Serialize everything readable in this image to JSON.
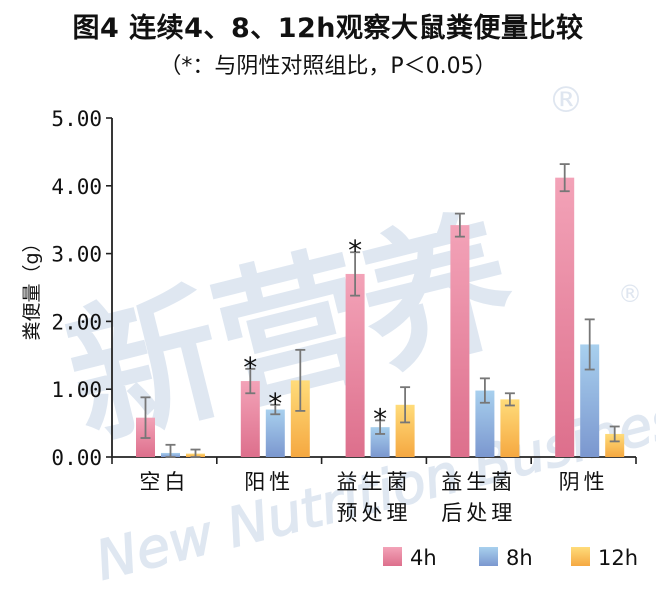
{
  "title": "图4 连续4、8、12h观察大鼠粪便量比较",
  "subtitle": "（*：与阴性对照组比，P＜0.05）",
  "watermark": {
    "cn": "新营养",
    "en": "New Nutrition Business",
    "mark": "®"
  },
  "colors": {
    "4h": [
      "#f3a3b8",
      "#dd6f8c"
    ],
    "8h": [
      "#a8d0ee",
      "#7b97cf"
    ],
    "12h": [
      "#ffdc7a",
      "#f5a841"
    ]
  },
  "chart_data": {
    "type": "bar",
    "ylabel": "粪便量（g）",
    "ylim": [
      0,
      5
    ],
    "yticks": [
      "0.00",
      "1.00",
      "2.00",
      "3.00",
      "4.00",
      "5.00"
    ],
    "categories": [
      [
        "空白"
      ],
      [
        "阳性"
      ],
      [
        "益生菌",
        "预处理"
      ],
      [
        "益生菌",
        "后处理"
      ],
      [
        "阴性"
      ]
    ],
    "series": [
      {
        "name": "4h",
        "values": [
          0.58,
          1.12,
          2.7,
          3.42,
          4.12
        ],
        "errors": [
          0.3,
          0.18,
          0.32,
          0.17,
          0.2
        ]
      },
      {
        "name": "8h",
        "values": [
          0.06,
          0.7,
          0.44,
          0.98,
          1.66
        ],
        "errors": [
          0.12,
          0.07,
          0.1,
          0.18,
          0.37
        ]
      },
      {
        "name": "12h",
        "values": [
          0.05,
          1.13,
          0.77,
          0.85,
          0.34
        ],
        "errors": [
          0.06,
          0.45,
          0.26,
          0.09,
          0.11
        ]
      }
    ],
    "significance": {
      "symbol": "*",
      "marks": [
        [
          1,
          0
        ],
        [
          1,
          1
        ],
        [
          2,
          0
        ],
        [
          2,
          1
        ]
      ]
    },
    "grid": false,
    "legend": "bottom-right"
  }
}
